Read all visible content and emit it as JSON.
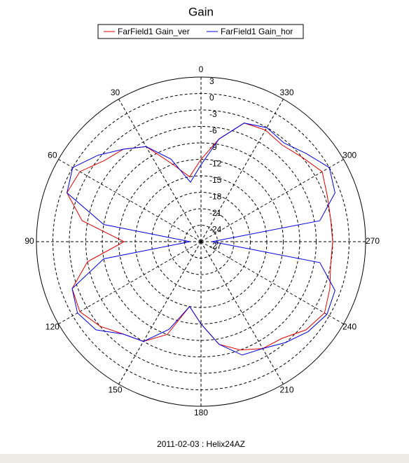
{
  "chart_data": {
    "type": "polar",
    "title": "Gain",
    "footer": "2011-02-03 : Helix24AZ",
    "x": [
      0,
      10,
      20,
      30,
      40,
      50,
      60,
      70,
      80,
      90,
      100,
      110,
      120,
      130,
      140,
      150,
      160,
      170,
      180,
      190,
      200,
      210,
      220,
      230,
      240,
      250,
      260,
      270,
      280,
      290,
      300,
      310,
      320,
      330,
      340,
      350
    ],
    "series": [
      {
        "name": "FarField1 Gain_ver",
        "color": "#e00000",
        "values": [
          -12,
          -15,
          -12,
          -7,
          -5,
          -4,
          -1.5,
          -1,
          -5,
          -13,
          -6,
          -2,
          -1.5,
          -3,
          -5,
          -6,
          -9,
          -15,
          -12,
          -8,
          -6,
          -4.5,
          -4,
          -2,
          -1,
          -2,
          -3,
          -3,
          -3,
          -2.5,
          -1.5,
          -3,
          -4,
          -3.5,
          -4,
          -8
        ]
      },
      {
        "name": "FarField1 Gain_hor",
        "color": "#0000e0",
        "values": [
          -13,
          -16,
          -11,
          -7,
          -5,
          -2.5,
          0,
          -1,
          -9,
          -25,
          -9,
          -2,
          -1,
          -2,
          -5,
          -6,
          -10,
          -15,
          -12,
          -8,
          -5,
          -4.5,
          -3,
          -1.5,
          -0.5,
          -1,
          -5,
          -25,
          -5,
          -1,
          0,
          -2,
          -3.5,
          -3,
          -4,
          -8
        ]
      }
    ],
    "ylim": [
      -27,
      3
    ],
    "yticks": [
      3,
      0,
      -3,
      -6,
      -9,
      -12,
      -15,
      -18,
      -21,
      -24,
      -27
    ],
    "xticks": [
      0,
      30,
      60,
      90,
      120,
      150,
      180,
      210,
      240,
      270,
      300,
      330
    ],
    "grid": true
  }
}
